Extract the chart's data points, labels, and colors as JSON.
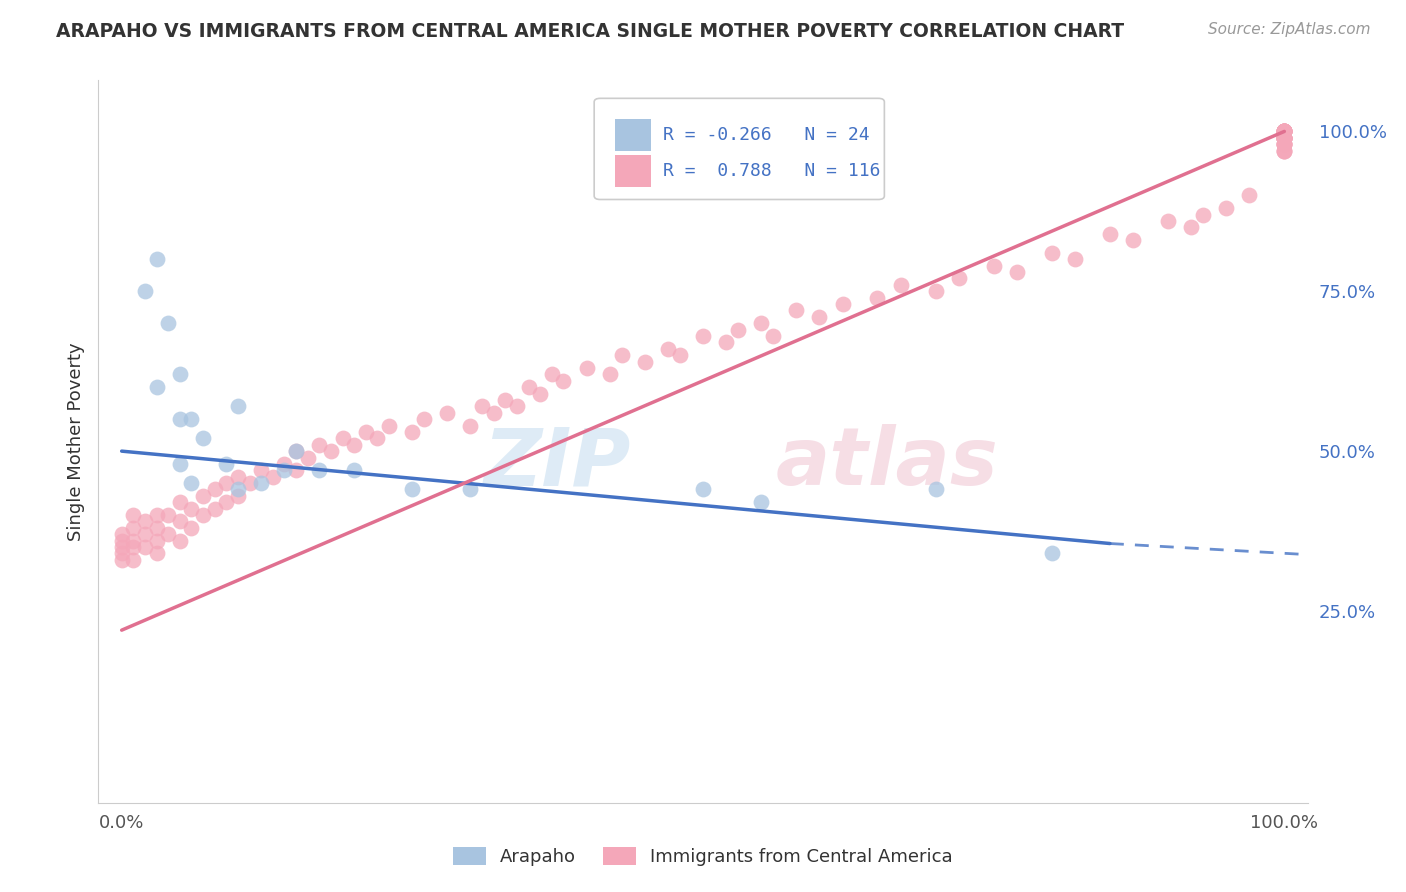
{
  "title": "ARAPAHO VS IMMIGRANTS FROM CENTRAL AMERICA SINGLE MOTHER POVERTY CORRELATION CHART",
  "source_text": "Source: ZipAtlas.com",
  "ylabel": "Single Mother Poverty",
  "xlim": [
    -2,
    102
  ],
  "ylim": [
    -5,
    108
  ],
  "right_ytick_labels": [
    "25.0%",
    "50.0%",
    "75.0%",
    "100.0%"
  ],
  "right_ytick_values": [
    25,
    50,
    75,
    100
  ],
  "legend_r1": "-0.266",
  "legend_n1": "24",
  "legend_r2": "0.788",
  "legend_n2": "116",
  "arapaho_color": "#a8c4e0",
  "immigrant_color": "#f4a7b9",
  "arapaho_line_color": "#4472c4",
  "immigrant_line_color": "#e07090",
  "background_color": "#ffffff",
  "grid_color": "#cccccc",
  "ara_line_start_x": 0,
  "ara_line_start_y": 50,
  "ara_line_end_x": 100,
  "ara_line_end_y": 33,
  "ara_line_solid_end": 85,
  "imm_line_start_x": 0,
  "imm_line_start_y": 22,
  "imm_line_end_x": 100,
  "imm_line_end_y": 100,
  "arapaho_x": [
    3,
    2,
    3,
    4,
    5,
    5,
    5,
    6,
    6,
    7,
    9,
    10,
    10,
    12,
    14,
    15,
    17,
    20,
    25,
    30,
    50,
    55,
    70,
    80
  ],
  "arapaho_y": [
    60,
    75,
    80,
    70,
    62,
    55,
    48,
    55,
    45,
    52,
    48,
    57,
    44,
    45,
    47,
    50,
    47,
    47,
    44,
    44,
    44,
    42,
    44,
    34
  ],
  "immigrant_x": [
    0,
    0,
    0,
    0,
    0,
    1,
    1,
    1,
    1,
    1,
    2,
    2,
    2,
    3,
    3,
    3,
    3,
    4,
    4,
    5,
    5,
    5,
    6,
    6,
    7,
    7,
    8,
    8,
    9,
    9,
    10,
    10,
    11,
    12,
    13,
    14,
    15,
    15,
    16,
    17,
    18,
    19,
    20,
    21,
    22,
    23,
    25,
    26,
    28,
    30,
    31,
    32,
    33,
    34,
    35,
    36,
    37,
    38,
    40,
    42,
    43,
    45,
    47,
    48,
    50,
    52,
    53,
    55,
    56,
    58,
    60,
    62,
    65,
    67,
    70,
    72,
    75,
    77,
    80,
    82,
    85,
    87,
    90,
    92,
    93,
    95,
    97,
    100,
    100,
    100,
    100,
    100,
    100,
    100,
    100,
    100,
    100,
    100,
    100,
    100,
    100,
    100,
    100,
    100,
    100,
    100,
    100,
    100,
    100,
    100,
    100,
    100,
    100,
    100,
    100,
    100
  ],
  "immigrant_y": [
    33,
    34,
    35,
    36,
    37,
    33,
    35,
    36,
    38,
    40,
    35,
    37,
    39,
    34,
    36,
    38,
    40,
    37,
    40,
    36,
    39,
    42,
    38,
    41,
    40,
    43,
    41,
    44,
    42,
    45,
    43,
    46,
    45,
    47,
    46,
    48,
    47,
    50,
    49,
    51,
    50,
    52,
    51,
    53,
    52,
    54,
    53,
    55,
    56,
    54,
    57,
    56,
    58,
    57,
    60,
    59,
    62,
    61,
    63,
    62,
    65,
    64,
    66,
    65,
    68,
    67,
    69,
    70,
    68,
    72,
    71,
    73,
    74,
    76,
    75,
    77,
    79,
    78,
    81,
    80,
    84,
    83,
    86,
    85,
    87,
    88,
    90,
    97,
    98,
    99,
    99,
    100,
    100,
    97,
    98,
    99,
    100,
    100,
    97,
    99,
    100,
    99,
    98,
    100,
    99,
    98,
    100,
    99,
    100,
    99,
    99,
    100,
    98,
    99,
    100,
    100
  ]
}
